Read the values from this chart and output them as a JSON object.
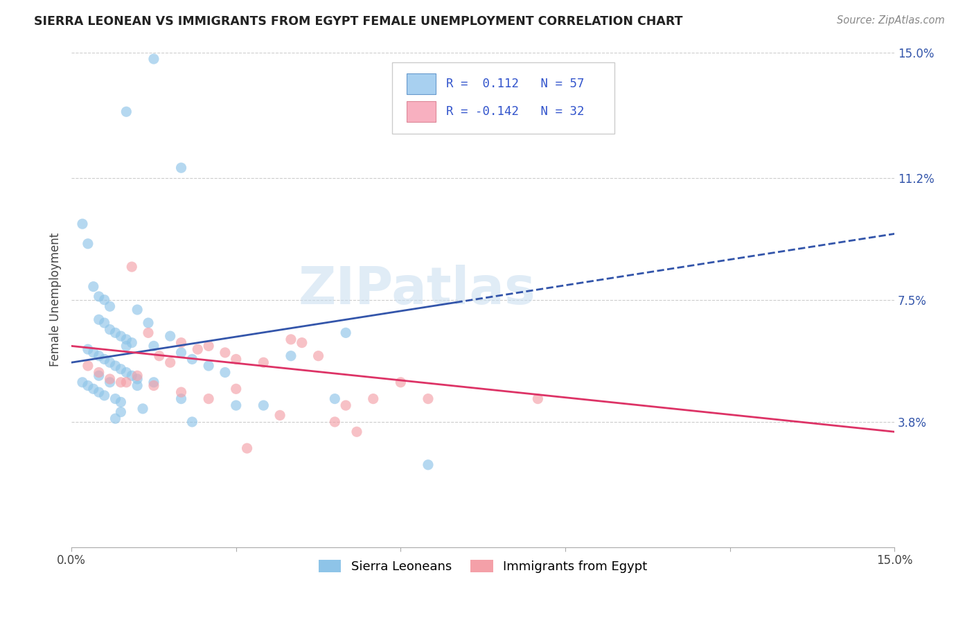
{
  "title": "SIERRA LEONEAN VS IMMIGRANTS FROM EGYPT FEMALE UNEMPLOYMENT CORRELATION CHART",
  "source": "Source: ZipAtlas.com",
  "ylabel": "Female Unemployment",
  "y_ticks": [
    3.8,
    7.5,
    11.2,
    15.0
  ],
  "y_tick_labels": [
    "3.8%",
    "7.5%",
    "11.2%",
    "15.0%"
  ],
  "x_range": [
    0.0,
    15.0
  ],
  "y_range": [
    0.0,
    15.0
  ],
  "legend_label1": "Sierra Leoneans",
  "legend_label2": "Immigrants from Egypt",
  "watermark": "ZIPatlas",
  "blue_scatter_color": "#8ec4e8",
  "pink_scatter_color": "#f4a0a8",
  "blue_line_color": "#3355aa",
  "pink_line_color": "#dd3366",
  "blue_legend_color": "#a8d0f0",
  "pink_legend_color": "#f8b0c0",
  "legend_text_color": "#3355cc",
  "blue_line_y0": 5.6,
  "blue_line_y1": 9.5,
  "blue_solid_x1": 7.0,
  "pink_line_y0": 6.1,
  "pink_line_y1": 3.5,
  "sierra_x": [
    1.5,
    1.0,
    2.0,
    0.2,
    0.3,
    0.4,
    0.5,
    0.6,
    0.7,
    0.5,
    0.6,
    0.7,
    0.8,
    0.9,
    1.0,
    1.1,
    0.3,
    0.4,
    0.5,
    0.6,
    0.7,
    0.8,
    0.9,
    1.0,
    1.1,
    1.2,
    0.2,
    0.3,
    0.4,
    0.5,
    0.6,
    0.8,
    0.9,
    1.5,
    2.0,
    1.8,
    2.2,
    1.2,
    1.4,
    2.5,
    2.8,
    3.0,
    0.5,
    0.7,
    1.2,
    4.0,
    5.0,
    1.0,
    1.5,
    0.9,
    0.8,
    1.3,
    2.0,
    3.5,
    4.8,
    2.2,
    6.5
  ],
  "sierra_y": [
    14.8,
    13.2,
    11.5,
    9.8,
    9.2,
    7.9,
    7.6,
    7.5,
    7.3,
    6.9,
    6.8,
    6.6,
    6.5,
    6.4,
    6.3,
    6.2,
    6.0,
    5.9,
    5.8,
    5.7,
    5.6,
    5.5,
    5.4,
    5.3,
    5.2,
    5.1,
    5.0,
    4.9,
    4.8,
    4.7,
    4.6,
    4.5,
    4.4,
    6.1,
    5.9,
    6.4,
    5.7,
    7.2,
    6.8,
    5.5,
    5.3,
    4.3,
    5.2,
    5.0,
    4.9,
    5.8,
    6.5,
    6.1,
    5.0,
    4.1,
    3.9,
    4.2,
    4.5,
    4.3,
    4.5,
    3.8,
    2.5
  ],
  "egypt_x": [
    0.3,
    0.5,
    0.7,
    0.9,
    1.1,
    1.4,
    1.6,
    1.8,
    2.0,
    2.3,
    2.5,
    2.8,
    3.0,
    1.0,
    1.2,
    1.5,
    2.0,
    2.5,
    3.0,
    3.5,
    4.0,
    4.5,
    5.5,
    6.0,
    4.2,
    5.0,
    3.8,
    4.8,
    5.2,
    6.5,
    8.5,
    3.2
  ],
  "egypt_y": [
    5.5,
    5.3,
    5.1,
    5.0,
    8.5,
    6.5,
    5.8,
    5.6,
    6.2,
    6.0,
    6.1,
    5.9,
    5.7,
    5.0,
    5.2,
    4.9,
    4.7,
    4.5,
    4.8,
    5.6,
    6.3,
    5.8,
    4.5,
    5.0,
    6.2,
    4.3,
    4.0,
    3.8,
    3.5,
    4.5,
    4.5,
    3.0
  ]
}
